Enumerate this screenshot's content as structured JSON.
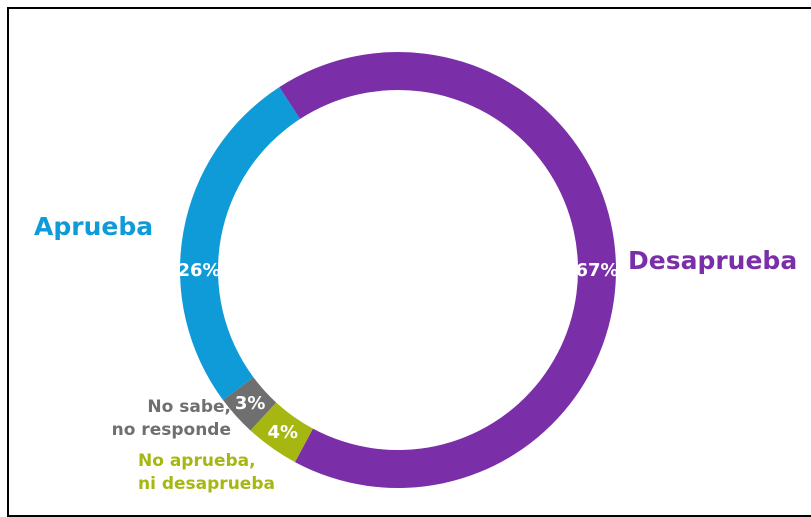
{
  "chart_data": {
    "type": "pie",
    "categories": [
      "Desaprueba",
      "No aprueba, ni desaprueba",
      "No sabe, no responde",
      "Aprueba"
    ],
    "values": [
      67,
      4,
      3,
      26
    ],
    "value_labels": [
      "67%",
      "4%",
      "3%",
      "26%"
    ],
    "colors": [
      "#7a2fa8",
      "#a6b712",
      "#6f6f6f",
      "#0f9bd7"
    ],
    "donut": true,
    "legend": "none"
  },
  "labels": {
    "aprueba": "Aprueba",
    "desaprueba": "Desaprueba",
    "nsnr_line1": "No sabe,",
    "nsnr_line2": "no responde",
    "ni_line1": "No aprueba,",
    "ni_line2": "ni desaprueba"
  }
}
